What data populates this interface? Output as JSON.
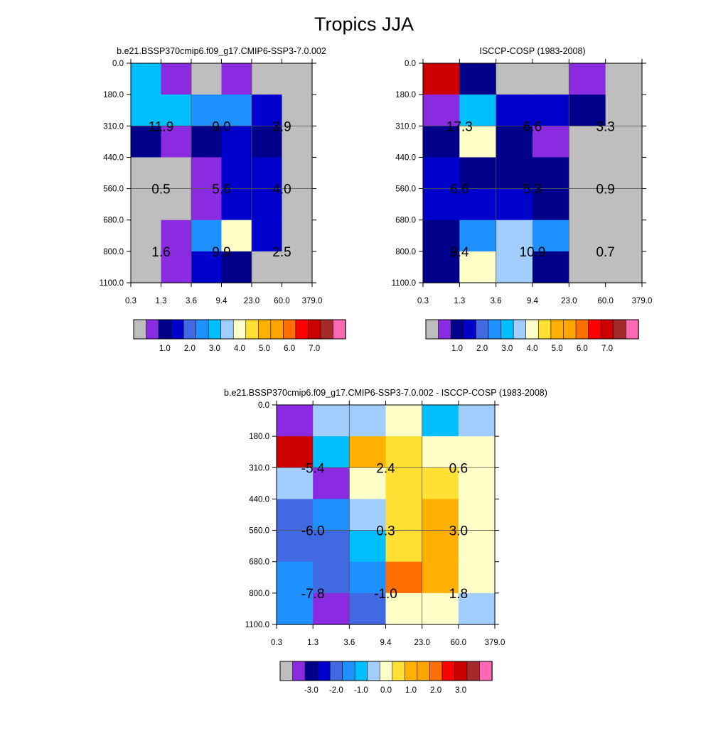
{
  "title": "Tropics JJA",
  "colors": {
    "main": [
      "#bebebe",
      "#8a2be2",
      "#00008b",
      "#0000cd",
      "#4169e1",
      "#1e90ff",
      "#00bfff",
      "#a2cdff",
      "#ffffc8",
      "#ffe033",
      "#ffb000",
      "#ffa500",
      "#ff6e00",
      "#ff0000",
      "#cd0000",
      "#a52a2a",
      "#ff69b4"
    ],
    "diff": [
      "#bebebe",
      "#8a2be2",
      "#00008b",
      "#0000cd",
      "#4169e1",
      "#1e90ff",
      "#00bfff",
      "#a2cdff",
      "#ffffc8",
      "#ffe033",
      "#ffb000",
      "#ffa500",
      "#ff6e00",
      "#ff0000",
      "#cd0000",
      "#a52a2a",
      "#ff69b4"
    ]
  },
  "chart_data": [
    {
      "type": "heatmap",
      "title": "b.e21.BSSP370cmip6.f09_g17.CMIP6-SSP3-7.0.002",
      "xlabels": [
        "0.3",
        "1.3",
        "3.6",
        "9.4",
        "23.0",
        "60.0",
        "379.0"
      ],
      "ylabels": [
        "0.0",
        "180.0",
        "310.0",
        "440.0",
        "560.0",
        "680.0",
        "800.0",
        "1100.0"
      ],
      "colorbar_labels": [
        "1.0",
        "2.0",
        "3.0",
        "4.0",
        "5.0",
        "6.0",
        "7.0"
      ],
      "cells": [
        [
          6,
          1,
          0,
          1,
          0,
          0
        ],
        [
          6,
          6,
          5,
          5,
          3,
          0
        ],
        [
          2,
          1,
          2,
          3,
          2,
          0
        ],
        [
          0,
          0,
          1,
          3,
          3,
          0
        ],
        [
          0,
          0,
          1,
          3,
          3,
          0
        ],
        [
          0,
          1,
          5,
          8,
          3,
          0
        ],
        [
          0,
          1,
          3,
          2,
          0,
          0
        ]
      ],
      "annotations": [
        {
          "label": "11.9",
          "col": 1,
          "row": 2
        },
        {
          "label": "9.0",
          "col": 3,
          "row": 2
        },
        {
          "label": "3.9",
          "col": 5,
          "row": 2
        },
        {
          "label": "0.5",
          "col": 1,
          "row": 4
        },
        {
          "label": "5.6",
          "col": 3,
          "row": 4
        },
        {
          "label": "4.0",
          "col": 5,
          "row": 4
        },
        {
          "label": "1.6",
          "col": 1,
          "row": 6
        },
        {
          "label": "9.9",
          "col": 3,
          "row": 6
        },
        {
          "label": "2.5",
          "col": 5,
          "row": 6
        }
      ]
    },
    {
      "type": "heatmap",
      "title": "ISCCP-COSP (1983-2008)",
      "xlabels": [
        "0.3",
        "1.3",
        "3.6",
        "9.4",
        "23.0",
        "60.0",
        "379.0"
      ],
      "ylabels": [
        "0.0",
        "180.0",
        "310.0",
        "440.0",
        "560.0",
        "680.0",
        "800.0",
        "1100.0"
      ],
      "colorbar_labels": [
        "1.0",
        "2.0",
        "3.0",
        "4.0",
        "5.0",
        "6.0",
        "7.0"
      ],
      "cells": [
        [
          14,
          2,
          0,
          0,
          1,
          0
        ],
        [
          1,
          6,
          3,
          3,
          2,
          0
        ],
        [
          2,
          8,
          2,
          1,
          0,
          0
        ],
        [
          3,
          2,
          2,
          2,
          0,
          0
        ],
        [
          3,
          3,
          3,
          2,
          0,
          0
        ],
        [
          2,
          5,
          7,
          5,
          0,
          0
        ],
        [
          2,
          8,
          7,
          2,
          0,
          0
        ]
      ],
      "annotations": [
        {
          "label": "17.3",
          "col": 1,
          "row": 2
        },
        {
          "label": "6.6",
          "col": 3,
          "row": 2
        },
        {
          "label": "3.3",
          "col": 5,
          "row": 2
        },
        {
          "label": "6.6",
          "col": 1,
          "row": 4
        },
        {
          "label": "5.3",
          "col": 3,
          "row": 4
        },
        {
          "label": "0.9",
          "col": 5,
          "row": 4
        },
        {
          "label": "9.4",
          "col": 1,
          "row": 6
        },
        {
          "label": "10.9",
          "col": 3,
          "row": 6
        },
        {
          "label": "0.7",
          "col": 5,
          "row": 6
        }
      ]
    },
    {
      "type": "heatmap",
      "title": "b.e21.BSSP370cmip6.f09_g17.CMIP6-SSP3-7.0.002 - ISCCP-COSP (1983-2008)",
      "xlabels": [
        "0.3",
        "1.3",
        "3.6",
        "9.4",
        "23.0",
        "60.0",
        "379.0"
      ],
      "ylabels": [
        "0.0",
        "180.0",
        "310.0",
        "440.0",
        "560.0",
        "680.0",
        "800.0",
        "1100.0"
      ],
      "colorbar_labels": [
        "-3.0",
        "-2.0",
        "-1.0",
        "0.0",
        "1.0",
        "2.0",
        "3.0"
      ],
      "cells": [
        [
          1,
          7,
          7,
          8,
          6,
          7
        ],
        [
          14,
          6,
          10,
          9,
          8,
          8
        ],
        [
          7,
          1,
          8,
          9,
          9,
          8
        ],
        [
          4,
          5,
          7,
          9,
          10,
          8
        ],
        [
          4,
          4,
          6,
          9,
          10,
          8
        ],
        [
          5,
          4,
          5,
          12,
          10,
          8
        ],
        [
          5,
          1,
          4,
          8,
          8,
          7
        ]
      ],
      "annotations": [
        {
          "label": "-5.4",
          "col": 1,
          "row": 2
        },
        {
          "label": "2.4",
          "col": 3,
          "row": 2
        },
        {
          "label": "0.6",
          "col": 5,
          "row": 2
        },
        {
          "label": "-6.0",
          "col": 1,
          "row": 4
        },
        {
          "label": "0.3",
          "col": 3,
          "row": 4
        },
        {
          "label": "3.0",
          "col": 5,
          "row": 4
        },
        {
          "label": "-7.8",
          "col": 1,
          "row": 6
        },
        {
          "label": "-1.0",
          "col": 3,
          "row": 6
        },
        {
          "label": "1.8",
          "col": 5,
          "row": 6
        }
      ]
    }
  ]
}
